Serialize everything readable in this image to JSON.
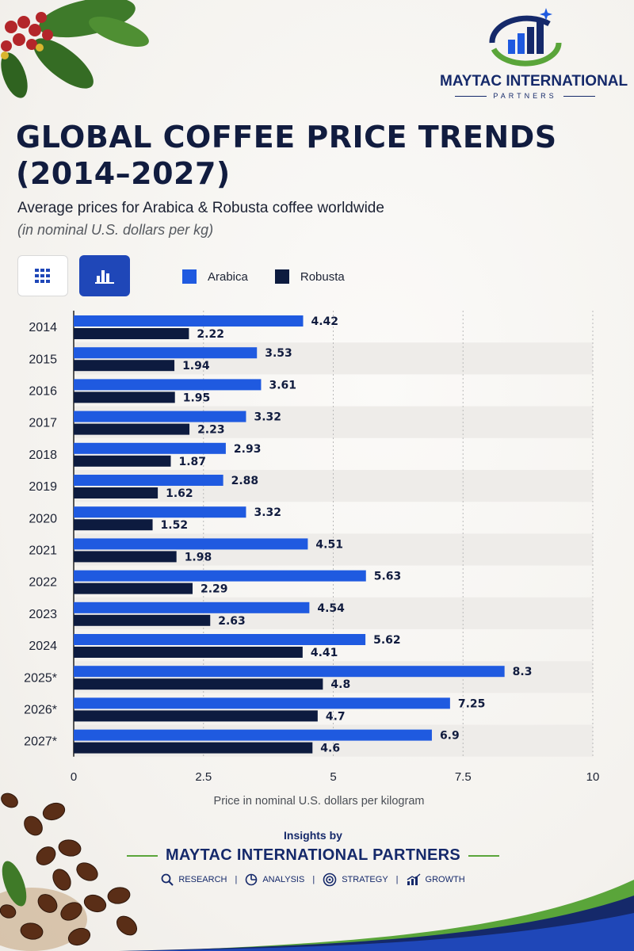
{
  "brand": {
    "name": "MAYTAC INTERNATIONAL",
    "tagline": "PARTNERS",
    "color_navy": "#15296a",
    "color_green": "#5aa53a"
  },
  "header": {
    "title": "GLOBAL COFFEE PRICE TRENDS (2014–2027)",
    "subtitle": "Average prices for Arabica & Robusta coffee worldwide",
    "unit_note": "(in nominal U.S. dollars per kg)"
  },
  "view_toggle": {
    "table_icon": "grid-icon",
    "bar_icon": "bar-chart-icon",
    "active": "bar"
  },
  "chart_data": {
    "type": "bar",
    "orientation": "horizontal",
    "categories": [
      "2014",
      "2015",
      "2016",
      "2017",
      "2018",
      "2019",
      "2020",
      "2021",
      "2022",
      "2023",
      "2024",
      "2025*",
      "2026*",
      "2027*"
    ],
    "series": [
      {
        "name": "Arabica",
        "color": "#1f5ae0",
        "values": [
          4.42,
          3.53,
          3.61,
          3.32,
          2.93,
          2.88,
          3.32,
          4.51,
          5.63,
          4.54,
          5.62,
          8.3,
          7.25,
          6.9
        ]
      },
      {
        "name": "Robusta",
        "color": "#0d1b3f",
        "values": [
          2.22,
          1.94,
          1.95,
          2.23,
          1.87,
          1.62,
          1.52,
          1.98,
          2.29,
          2.63,
          4.41,
          4.8,
          4.7,
          4.6
        ]
      }
    ],
    "xlabel": "Price in nominal U.S. dollars per kilogram",
    "xlim": [
      0,
      10
    ],
    "xticks": [
      "0",
      "2.5",
      "5",
      "7.5",
      "10"
    ],
    "grid": true,
    "legend_position": "top"
  },
  "footer": {
    "insights_label": "Insights by",
    "company": "MAYTAC INTERNATIONAL PARTNERS",
    "pillars": [
      {
        "label": "RESEARCH",
        "icon": "search-icon"
      },
      {
        "label": "ANALYSIS",
        "icon": "pie-chart-icon"
      },
      {
        "label": "STRATEGY",
        "icon": "target-icon"
      },
      {
        "label": "GROWTH",
        "icon": "growth-chart-icon"
      }
    ]
  }
}
